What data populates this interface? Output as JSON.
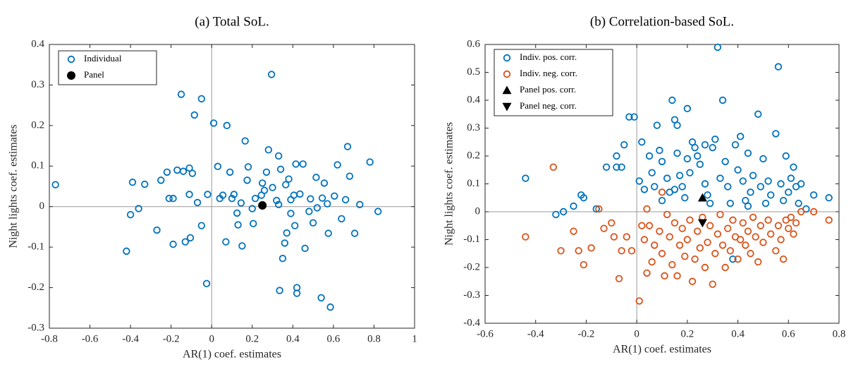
{
  "chart_data": [
    {
      "type": "scatter",
      "title": "(a) Total SoL.",
      "xlabel": "AR(1) coef. estimates",
      "ylabel": "Night lights coef. estimates",
      "xlim": [
        -0.8,
        1
      ],
      "ylim": [
        -0.3,
        0.4
      ],
      "xticks": [
        -0.8,
        -0.6,
        -0.4,
        -0.2,
        0,
        0.2,
        0.4,
        0.6,
        0.8,
        1
      ],
      "yticks": [
        -0.3,
        -0.2,
        -0.1,
        0,
        0.1,
        0.2,
        0.3,
        0.4
      ],
      "zero_lines": true,
      "legend": "upper left",
      "series": [
        {
          "name": "Individual",
          "color": "#0072BD",
          "marker": "hollow-circle",
          "x": [
            -0.77,
            -0.42,
            -0.39,
            -0.4,
            -0.36,
            -0.33,
            -0.27,
            -0.25,
            -0.22,
            -0.21,
            -0.19,
            -0.19,
            -0.17,
            -0.15,
            -0.14,
            -0.13,
            -0.11,
            -0.11,
            -0.105,
            -0.085,
            -0.095,
            -0.05,
            -0.07,
            -0.05,
            -0.025,
            -0.02,
            0.01,
            0.03,
            0.04,
            0.055,
            0.07,
            0.075,
            0.09,
            0.1,
            0.11,
            0.13,
            0.15,
            0.165,
            0.175,
            0.18,
            0.2,
            0.215,
            0.25,
            0.26,
            0.27,
            0.28,
            0.295,
            0.32,
            0.33,
            0.34,
            0.335,
            0.35,
            0.36,
            0.37,
            0.38,
            0.39,
            0.405,
            0.415,
            0.42,
            0.42,
            0.45,
            0.46,
            0.48,
            0.5,
            0.515,
            0.54,
            0.555,
            0.57,
            0.575,
            0.585,
            0.605,
            0.62,
            0.64,
            0.66,
            0.67,
            0.68,
            0.705,
            0.73,
            0.78,
            0.82,
            0.245,
            0.3,
            0.33,
            0.365,
            0.39,
            0.435,
            0.487,
            0.52,
            0.545,
            0.41,
            0.205,
            0.145,
            0.125
          ],
          "y": [
            0.054,
            -0.11,
            0.06,
            -0.02,
            -0.005,
            0.055,
            -0.058,
            0.065,
            0.085,
            0.02,
            0.02,
            -0.093,
            0.09,
            0.277,
            0.087,
            -0.087,
            0.095,
            0.03,
            -0.077,
            0.226,
            0.082,
            0.266,
            0.01,
            -0.047,
            -0.19,
            0.03,
            0.206,
            0.099,
            0.02,
            0.028,
            -0.087,
            0.2,
            0.085,
            0.02,
            0.03,
            -0.045,
            -0.097,
            0.162,
            0.065,
            0.098,
            -0.005,
            0.02,
            0.058,
            0.04,
            0.085,
            0.14,
            0.326,
            0.015,
            0.125,
            0.092,
            -0.207,
            -0.128,
            -0.09,
            -0.065,
            0.068,
            -0.017,
            0.028,
            0.105,
            -0.2,
            -0.214,
            0.105,
            -0.103,
            -0.012,
            -0.04,
            0.072,
            -0.225,
            0.058,
            0.007,
            -0.066,
            -0.248,
            0.026,
            0.103,
            -0.03,
            0.017,
            0.148,
            0.075,
            -0.066,
            0.005,
            0.11,
            -0.012,
            0.028,
            0.047,
            0.005,
            0.054,
            0.017,
            0.031,
            0.019,
            -0.003,
            0.021,
            -0.047,
            -0.042,
            0.009,
            -0.016
          ]
        },
        {
          "name": "Panel",
          "color": "#000000",
          "marker": "filled-circle",
          "x": [
            0.25
          ],
          "y": [
            0.003
          ]
        }
      ]
    },
    {
      "type": "scatter",
      "title": "(b) Correlation-based SoL.",
      "xlabel": "AR(1) coef. estimates",
      "ylabel": "Night lights coef. estimates",
      "xlim": [
        -0.6,
        0.8
      ],
      "ylim": [
        -0.4,
        0.6
      ],
      "xticks": [
        -0.6,
        -0.4,
        -0.2,
        0,
        0.2,
        0.4,
        0.6,
        0.8
      ],
      "yticks": [
        -0.4,
        -0.3,
        -0.2,
        -0.1,
        0,
        0.1,
        0.2,
        0.3,
        0.4,
        0.5,
        0.6
      ],
      "zero_lines": true,
      "legend": "upper left",
      "series": [
        {
          "name": "Indiv. pos. corr.",
          "color": "#0072BD",
          "marker": "hollow-circle",
          "x": [
            -0.44,
            -0.32,
            -0.29,
            -0.25,
            -0.22,
            -0.21,
            -0.16,
            -0.12,
            -0.08,
            -0.08,
            -0.06,
            -0.05,
            -0.03,
            -0.01,
            0.02,
            0.01,
            0.03,
            0.05,
            0.06,
            0.07,
            0.08,
            0.09,
            0.1,
            0.1,
            0.12,
            0.13,
            0.14,
            0.15,
            0.16,
            0.16,
            0.17,
            0.18,
            0.19,
            0.2,
            0.21,
            0.22,
            0.23,
            0.24,
            0.25,
            0.27,
            0.28,
            0.29,
            0.3,
            0.31,
            0.32,
            0.33,
            0.34,
            0.35,
            0.36,
            0.37,
            0.38,
            0.39,
            0.4,
            0.41,
            0.42,
            0.43,
            0.44,
            0.45,
            0.46,
            0.48,
            0.49,
            0.5,
            0.51,
            0.52,
            0.53,
            0.55,
            0.56,
            0.57,
            0.58,
            0.59,
            0.6,
            0.62,
            0.63,
            0.64,
            0.65,
            0.67,
            0.7,
            0.76,
            0.61,
            0.2,
            0.27,
            0.15,
            0.44
          ],
          "y": [
            0.12,
            -0.01,
            0.0,
            0.02,
            0.06,
            0.05,
            0.01,
            0.16,
            0.2,
            0.16,
            0.16,
            0.24,
            0.34,
            0.34,
            0.25,
            0.11,
            0.08,
            0.2,
            0.14,
            0.09,
            0.31,
            0.22,
            0.04,
            0.18,
            0.12,
            0.07,
            0.4,
            0.33,
            0.31,
            0.21,
            0.13,
            0.09,
            0.05,
            0.19,
            0.14,
            0.25,
            0.23,
            0.2,
            0.17,
            0.1,
            0.06,
            0.03,
            0.23,
            0.26,
            0.59,
            0.12,
            0.4,
            0.18,
            0.09,
            0.03,
            -0.17,
            0.24,
            0.15,
            0.27,
            0.11,
            0.04,
            0.21,
            0.07,
            0.13,
            0.35,
            0.09,
            0.19,
            0.03,
            0.11,
            0.06,
            0.28,
            0.52,
            0.1,
            0.04,
            0.2,
            0.07,
            0.16,
            0.09,
            0.03,
            0.1,
            0.01,
            0.06,
            0.05,
            0.12,
            0.37,
            0.24,
            0.08,
            0.02
          ]
        },
        {
          "name": "Indiv. neg. corr.",
          "color": "#D95319",
          "marker": "hollow-circle",
          "x": [
            -0.44,
            -0.33,
            -0.3,
            -0.25,
            -0.23,
            -0.21,
            -0.18,
            -0.15,
            -0.13,
            -0.1,
            -0.09,
            -0.07,
            -0.06,
            -0.04,
            -0.02,
            0.01,
            0.02,
            0.03,
            0.04,
            0.05,
            0.06,
            0.07,
            0.09,
            0.1,
            0.11,
            0.12,
            0.13,
            0.14,
            0.15,
            0.16,
            0.17,
            0.18,
            0.19,
            0.2,
            0.21,
            0.22,
            0.23,
            0.24,
            0.25,
            0.26,
            0.27,
            0.28,
            0.29,
            0.3,
            0.31,
            0.32,
            0.33,
            0.34,
            0.35,
            0.36,
            0.37,
            0.38,
            0.39,
            0.4,
            0.41,
            0.42,
            0.43,
            0.44,
            0.45,
            0.46,
            0.47,
            0.48,
            0.49,
            0.5,
            0.52,
            0.53,
            0.55,
            0.56,
            0.57,
            0.58,
            0.59,
            0.6,
            0.61,
            0.62,
            0.63,
            0.65,
            0.7,
            0.76,
            0.1,
            0.04
          ],
          "y": [
            -0.09,
            0.16,
            -0.14,
            -0.07,
            -0.14,
            -0.19,
            -0.13,
            0.01,
            -0.06,
            -0.04,
            -0.09,
            -0.24,
            -0.14,
            -0.09,
            -0.14,
            -0.32,
            -0.05,
            -0.1,
            -0.22,
            -0.05,
            -0.18,
            -0.12,
            -0.07,
            -0.15,
            -0.23,
            -0.01,
            -0.09,
            -0.19,
            -0.04,
            -0.23,
            -0.12,
            -0.06,
            -0.16,
            -0.1,
            -0.03,
            -0.25,
            -0.17,
            -0.07,
            -0.13,
            -0.02,
            -0.2,
            -0.11,
            -0.05,
            -0.26,
            -0.15,
            -0.08,
            -0.01,
            -0.12,
            -0.2,
            -0.06,
            -0.14,
            -0.03,
            -0.09,
            -0.17,
            -0.1,
            -0.04,
            -0.12,
            -0.07,
            -0.15,
            -0.02,
            -0.09,
            -0.18,
            -0.05,
            -0.11,
            -0.03,
            -0.08,
            -0.14,
            -0.05,
            -0.1,
            -0.17,
            -0.03,
            -0.06,
            -0.02,
            -0.08,
            -0.04,
            0.0,
            0.0,
            -0.03,
            0.07,
            0.01
          ]
        },
        {
          "name": "Panel pos. corr.",
          "color": "#000000",
          "marker": "triangle-up",
          "x": [
            0.26
          ],
          "y": [
            0.05
          ]
        },
        {
          "name": "Panel neg. corr.",
          "color": "#000000",
          "marker": "triangle-down",
          "x": [
            0.26
          ],
          "y": [
            -0.04
          ]
        }
      ]
    }
  ]
}
